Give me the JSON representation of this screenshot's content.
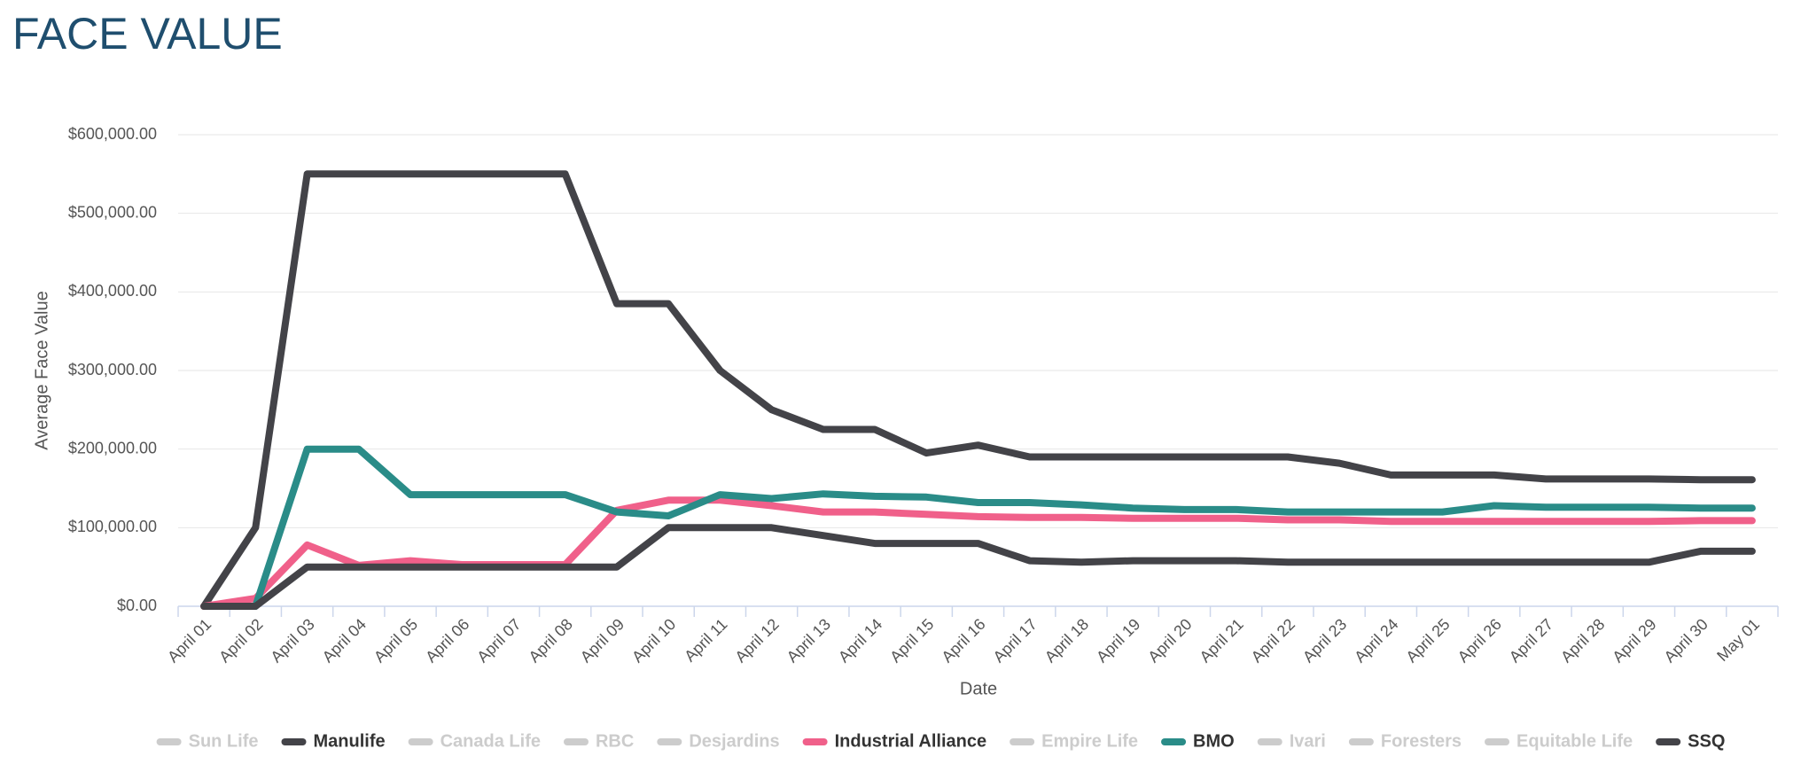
{
  "chart_data": {
    "type": "line",
    "title": "FACE VALUE",
    "x_label": "Date",
    "y_label": "Average Face Value",
    "categories": [
      "April 01",
      "April 02",
      "April 03",
      "April 04",
      "April 05",
      "April 06",
      "April 07",
      "April 08",
      "April 09",
      "April 10",
      "April 11",
      "April 12",
      "April 13",
      "April 14",
      "April 15",
      "April 16",
      "April 17",
      "April 18",
      "April 19",
      "April 20",
      "April 21",
      "April 22",
      "April 23",
      "April 24",
      "April 25",
      "April 26",
      "April 27",
      "April 28",
      "April 29",
      "April 30",
      "May 01"
    ],
    "ylim": [
      0,
      600000
    ],
    "yticks": [
      {
        "value": 0,
        "label": "$0.00"
      },
      {
        "value": 100000,
        "label": "$100,000.00"
      },
      {
        "value": 200000,
        "label": "$200,000.00"
      },
      {
        "value": 300000,
        "label": "$300,000.00"
      },
      {
        "value": 400000,
        "label": "$400,000.00"
      },
      {
        "value": 500000,
        "label": "$500,000.00"
      },
      {
        "value": 600000,
        "label": "$600,000.00"
      }
    ],
    "grid": true,
    "hidden_color": "#cccccc",
    "series": [
      {
        "name": "Sun Life",
        "visible": false
      },
      {
        "name": "Manulife",
        "color": "#434348",
        "visible": true,
        "values": [
          0,
          100000,
          550000,
          550000,
          550000,
          550000,
          550000,
          550000,
          385000,
          385000,
          300000,
          250000,
          225000,
          225000,
          195000,
          205000,
          190000,
          190000,
          190000,
          190000,
          190000,
          190000,
          182000,
          167000,
          167000,
          167000,
          162000,
          162000,
          162000,
          161000,
          161000
        ]
      },
      {
        "name": "Canada Life",
        "visible": false
      },
      {
        "name": "RBC",
        "visible": false
      },
      {
        "name": "Desjardins",
        "visible": false
      },
      {
        "name": "Industrial Alliance",
        "color": "#f0608a",
        "visible": true,
        "values": [
          0,
          10000,
          78000,
          52000,
          58000,
          53000,
          53000,
          53000,
          122000,
          135000,
          135000,
          128000,
          120000,
          120000,
          117000,
          114000,
          113000,
          113000,
          112000,
          112000,
          112000,
          110000,
          110000,
          108000,
          108000,
          108000,
          108000,
          108000,
          108000,
          109000,
          109000
        ]
      },
      {
        "name": "Empire Life",
        "visible": false
      },
      {
        "name": "BMO",
        "color": "#2a8c88",
        "visible": true,
        "values": [
          null,
          0,
          200000,
          200000,
          142000,
          142000,
          142000,
          142000,
          120000,
          115000,
          142000,
          137000,
          143000,
          140000,
          139000,
          132000,
          132000,
          129000,
          125000,
          123000,
          123000,
          120000,
          120000,
          120000,
          120000,
          128000,
          126000,
          126000,
          126000,
          125000,
          125000
        ]
      },
      {
        "name": "Ivari",
        "visible": false
      },
      {
        "name": "Foresters",
        "visible": false
      },
      {
        "name": "Equitable Life",
        "visible": false
      },
      {
        "name": "SSQ",
        "color": "#434348",
        "visible": true,
        "values": [
          0,
          0,
          50000,
          50000,
          50000,
          50000,
          50000,
          50000,
          50000,
          100000,
          100000,
          100000,
          90000,
          80000,
          80000,
          80000,
          58000,
          56000,
          58000,
          58000,
          58000,
          56000,
          56000,
          56000,
          56000,
          56000,
          56000,
          56000,
          56000,
          70000,
          70000
        ]
      }
    ]
  }
}
